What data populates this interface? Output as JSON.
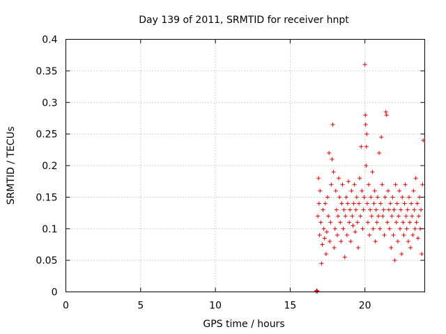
{
  "chart_data": {
    "type": "scatter",
    "title": "Day 139 of 2011, SRMTID for receiver hnpt",
    "xlabel": "GPS time / hours",
    "ylabel": "SRMTID / TECUs",
    "xlim": [
      0,
      24
    ],
    "ylim": [
      0,
      0.4
    ],
    "x_ticks": [
      0,
      5,
      10,
      15,
      20
    ],
    "y_ticks": [
      0,
      0.05,
      0.1,
      0.15,
      0.2,
      0.25,
      0.3,
      0.35,
      0.4
    ],
    "x_tick_labels": [
      "0",
      "5",
      "10",
      "15",
      "20"
    ],
    "y_tick_labels": [
      "0",
      "0.05",
      "0.1",
      "0.15",
      "0.2",
      "0.25",
      "0.3",
      "0.35",
      "0.4"
    ],
    "grid": true,
    "legend": "none",
    "marker": "+",
    "color": "#e00000",
    "series": [
      {
        "x": [
          16.75,
          16.78,
          16.82,
          16.85,
          16.9,
          16.93,
          16.97,
          17.0,
          17.05,
          17.1,
          17.15,
          17.2,
          17.25,
          17.3,
          17.35,
          17.4,
          17.45,
          17.5,
          17.55,
          17.6,
          17.65,
          17.7,
          17.75,
          17.8,
          17.85,
          17.9,
          17.95,
          18.0,
          18.05,
          18.1,
          18.15,
          18.2,
          18.25,
          18.3,
          18.35,
          18.4,
          18.45,
          18.5,
          18.55,
          18.6,
          18.65,
          18.7,
          18.75,
          18.8,
          18.85,
          18.9,
          18.95,
          19.0,
          19.05,
          19.1,
          19.15,
          19.2,
          19.25,
          19.3,
          19.35,
          19.4,
          19.45,
          19.5,
          19.55,
          19.6,
          19.65,
          19.7,
          19.75,
          19.8,
          19.85,
          19.9,
          19.95,
          20.0,
          20.03,
          20.05,
          20.08,
          20.1,
          20.12,
          20.15,
          20.2,
          20.25,
          20.3,
          20.35,
          20.4,
          20.45,
          20.5,
          20.55,
          20.6,
          20.65,
          20.7,
          20.75,
          20.8,
          20.85,
          20.9,
          20.95,
          21.0,
          21.05,
          21.1,
          21.15,
          21.2,
          21.25,
          21.3,
          21.35,
          21.4,
          21.45,
          21.5,
          21.55,
          21.6,
          21.65,
          21.7,
          21.75,
          21.8,
          21.85,
          21.9,
          21.95,
          22.0,
          22.05,
          22.1,
          22.15,
          22.2,
          22.25,
          22.3,
          22.35,
          22.4,
          22.45,
          22.5,
          22.55,
          22.6,
          22.65,
          22.7,
          22.75,
          22.8,
          22.85,
          22.9,
          22.95,
          23.0,
          23.05,
          23.1,
          23.15,
          23.2,
          23.25,
          23.3,
          23.35,
          23.4,
          23.45,
          23.5,
          23.55,
          23.6,
          23.65,
          23.7,
          23.75,
          23.8,
          23.85,
          23.9
        ],
        "y": [
          0.001,
          0.002,
          0.001,
          0.12,
          0.18,
          0.14,
          0.09,
          0.16,
          0.11,
          0.045,
          0.075,
          0.13,
          0.1,
          0.085,
          0.14,
          0.06,
          0.095,
          0.15,
          0.12,
          0.22,
          0.08,
          0.11,
          0.17,
          0.21,
          0.265,
          0.19,
          0.07,
          0.1,
          0.16,
          0.13,
          0.09,
          0.12,
          0.18,
          0.15,
          0.11,
          0.08,
          0.14,
          0.17,
          0.1,
          0.13,
          0.055,
          0.12,
          0.15,
          0.09,
          0.14,
          0.175,
          0.11,
          0.13,
          0.08,
          0.16,
          0.12,
          0.105,
          0.14,
          0.17,
          0.095,
          0.13,
          0.15,
          0.11,
          0.07,
          0.14,
          0.18,
          0.12,
          0.23,
          0.16,
          0.1,
          0.13,
          0.15,
          0.36,
          0.28,
          0.265,
          0.2,
          0.23,
          0.25,
          0.14,
          0.11,
          0.17,
          0.09,
          0.13,
          0.15,
          0.12,
          0.19,
          0.1,
          0.14,
          0.16,
          0.08,
          0.13,
          0.11,
          0.15,
          0.12,
          0.22,
          0.1,
          0.14,
          0.245,
          0.17,
          0.12,
          0.13,
          0.09,
          0.15,
          0.285,
          0.28,
          0.11,
          0.16,
          0.13,
          0.1,
          0.14,
          0.07,
          0.12,
          0.15,
          0.09,
          0.13,
          0.05,
          0.17,
          0.11,
          0.14,
          0.08,
          0.12,
          0.16,
          0.1,
          0.13,
          0.06,
          0.15,
          0.11,
          0.09,
          0.14,
          0.17,
          0.12,
          0.1,
          0.13,
          0.08,
          0.15,
          0.11,
          0.07,
          0.14,
          0.12,
          0.09,
          0.16,
          0.13,
          0.1,
          0.18,
          0.11,
          0.14,
          0.085,
          0.12,
          0.15,
          0.1,
          0.13,
          0.06,
          0.17,
          0.24
        ]
      }
    ]
  }
}
